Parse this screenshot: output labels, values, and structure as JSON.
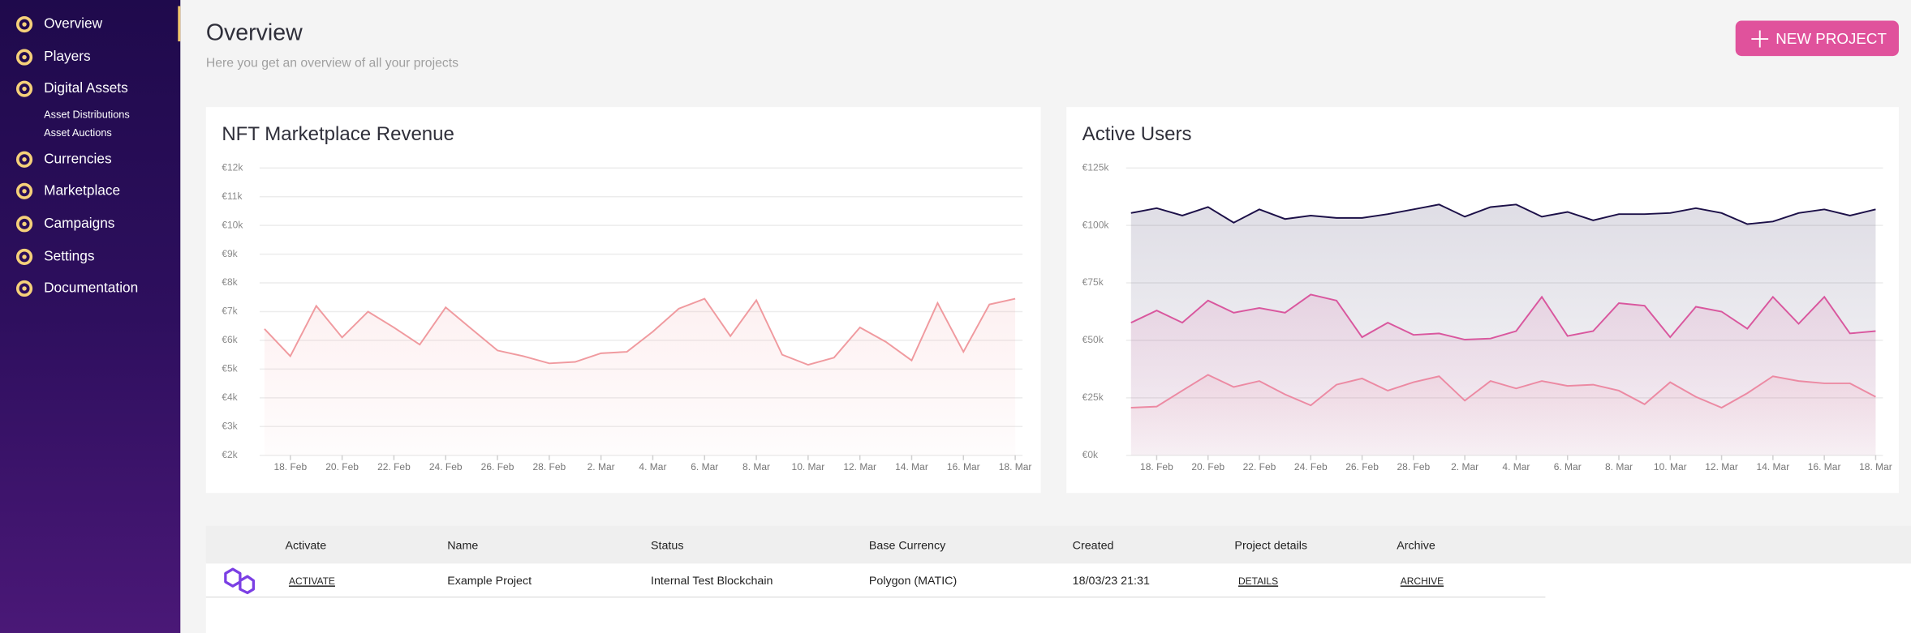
{
  "sidebar": {
    "items": [
      {
        "label": "Overview"
      },
      {
        "label": "Players"
      },
      {
        "label": "Digital Assets",
        "children": [
          "Asset Distributions",
          "Asset Auctions"
        ]
      },
      {
        "label": "Currencies"
      },
      {
        "label": "Marketplace"
      },
      {
        "label": "Campaigns"
      },
      {
        "label": "Settings"
      },
      {
        "label": "Documentation"
      }
    ]
  },
  "header": {
    "title": "Overview",
    "subtitle": "Here you get an overview of all your projects",
    "button": "NEW PROJECT"
  },
  "chart_data": [
    {
      "type": "area",
      "title": "NFT Marketplace Revenue",
      "color": "#f09a9f",
      "x": [
        null,
        "18. Feb",
        null,
        "20. Feb",
        null,
        "22. Feb",
        null,
        "24. Feb",
        null,
        "26. Feb",
        null,
        "28. Feb",
        null,
        "2. Mar",
        null,
        "4. Mar",
        null,
        "6. Mar",
        null,
        "8. Mar",
        null,
        "10. Mar",
        null,
        "12. Mar",
        null,
        "14. Mar",
        null,
        "16. Mar",
        null,
        "18. Mar"
      ],
      "values": [
        6400,
        5450,
        7200,
        6100,
        7000,
        6450,
        5850,
        7150,
        6400,
        5650,
        5450,
        5200,
        5250,
        5550,
        5600,
        6300,
        7100,
        7450,
        6150,
        7400,
        5500,
        5150,
        5400,
        6450,
        5950,
        5300,
        7300,
        5600,
        7250,
        7450
      ],
      "ylim": [
        2000,
        12000
      ],
      "yticks": [
        {
          "value": 2000,
          "label": "€2k"
        },
        {
          "value": 3000,
          "label": "€3k"
        },
        {
          "value": 4000,
          "label": "€4k"
        },
        {
          "value": 5000,
          "label": "€5k"
        },
        {
          "value": 6000,
          "label": "€6k"
        },
        {
          "value": 7000,
          "label": "€7k"
        },
        {
          "value": 8000,
          "label": "€8k"
        },
        {
          "value": 9000,
          "label": "€9k"
        },
        {
          "value": 10000,
          "label": "€10k"
        },
        {
          "value": 11000,
          "label": "€11k"
        },
        {
          "value": 12000,
          "label": "€12k"
        }
      ],
      "grid": true
    },
    {
      "type": "area",
      "title": "Active Users",
      "x": [
        null,
        "18. Feb",
        null,
        "20. Feb",
        null,
        "22. Feb",
        null,
        "24. Feb",
        null,
        "26. Feb",
        null,
        "28. Feb",
        null,
        "2. Mar",
        null,
        "4. Mar",
        null,
        "6. Mar",
        null,
        "8. Mar",
        null,
        "10. Mar",
        null,
        "12. Mar",
        null,
        "14. Mar",
        null,
        "16. Mar",
        null,
        "18. Mar"
      ],
      "series": [
        {
          "color": "#1c1048",
          "values": [
            105400,
            107500,
            104300,
            108000,
            101200,
            107000,
            102800,
            104300,
            103300,
            103300,
            104900,
            107000,
            109100,
            103800,
            108000,
            109100,
            103800,
            105900,
            102200,
            104900,
            104900,
            105400,
            107500,
            105400,
            100600,
            101700,
            105400,
            107000,
            104300,
            107000
          ]
        },
        {
          "color": "#d9579e",
          "values": [
            57700,
            63000,
            57700,
            67300,
            62000,
            64100,
            62000,
            69900,
            67300,
            51400,
            57700,
            52400,
            53000,
            50300,
            50800,
            54000,
            68900,
            51900,
            54000,
            66200,
            65100,
            51400,
            64600,
            62500,
            55100,
            68900,
            57200,
            68900,
            53000,
            54000
          ]
        },
        {
          "color": "#ec8aa3",
          "values": [
            20700,
            21200,
            28100,
            35000,
            29700,
            32300,
            26500,
            21700,
            30700,
            33400,
            28100,
            31800,
            34400,
            23800,
            32300,
            29100,
            32300,
            30200,
            30700,
            28100,
            22200,
            31800,
            25400,
            20700,
            27000,
            34400,
            32300,
            31300,
            31300,
            25400
          ]
        }
      ],
      "ylim": [
        0,
        125000
      ],
      "yticks": [
        {
          "value": 0,
          "label": "€0k"
        },
        {
          "value": 25000,
          "label": "€25k"
        },
        {
          "value": 50000,
          "label": "€50k"
        },
        {
          "value": 75000,
          "label": "€75k"
        },
        {
          "value": 100000,
          "label": "€100k"
        },
        {
          "value": 125000,
          "label": "€125k"
        }
      ],
      "grid": true
    }
  ],
  "table": {
    "headers": [
      "Activate",
      "Name",
      "Status",
      "Base Currency",
      "Created",
      "Project details",
      "Archive"
    ],
    "rows": [
      [
        "ACTIVATE",
        "Example Project",
        "Internal Test Blockchain",
        "Polygon (MATIC)",
        "18/03/23 21:31",
        "DETAILS",
        "ARCHIVE"
      ]
    ]
  }
}
